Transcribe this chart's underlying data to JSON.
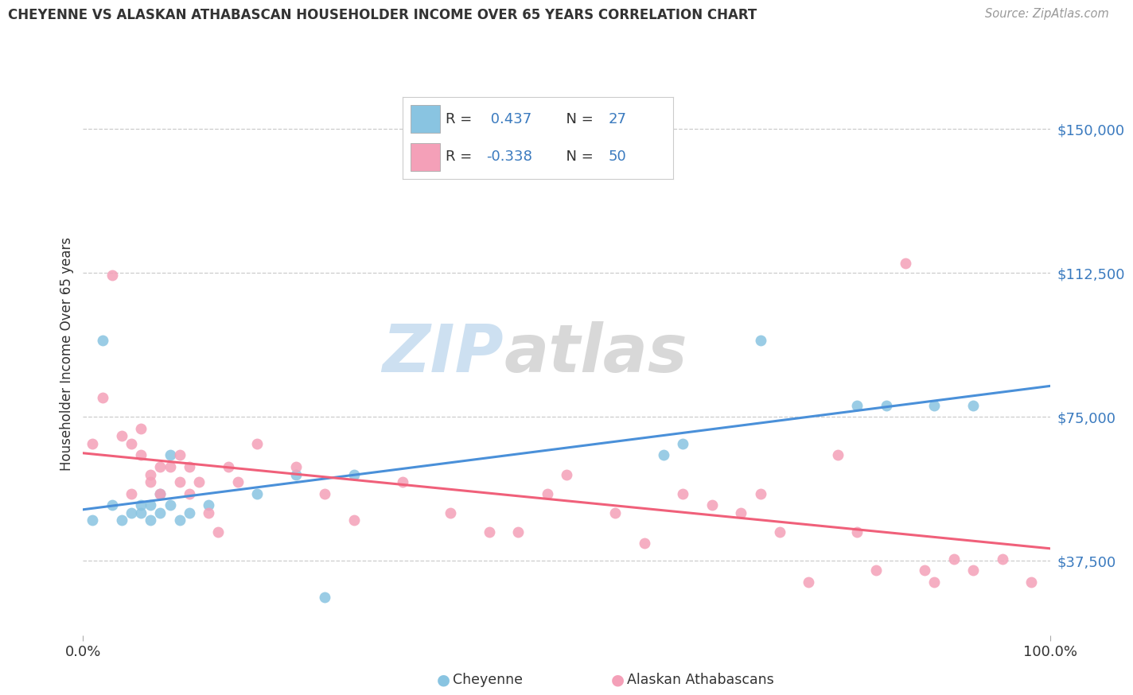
{
  "title": "CHEYENNE VS ALASKAN ATHABASCAN HOUSEHOLDER INCOME OVER 65 YEARS CORRELATION CHART",
  "source": "Source: ZipAtlas.com",
  "ylabel": "Householder Income Over 65 years",
  "legend_labels": [
    "Cheyenne",
    "Alaskan Athabascans"
  ],
  "cheyenne_R": "0.437",
  "cheyenne_N": "27",
  "athabascan_R": "-0.338",
  "athabascan_N": "50",
  "cheyenne_color": "#89c4e1",
  "athabascan_color": "#f4a0b8",
  "cheyenne_line_color": "#4a90d9",
  "athabascan_line_color": "#f0607a",
  "ytick_labels": [
    "$37,500",
    "$75,000",
    "$112,500",
    "$150,000"
  ],
  "ytick_values": [
    37500,
    75000,
    112500,
    150000
  ],
  "ymin": 18000,
  "ymax": 165000,
  "xmin": 0,
  "xmax": 100,
  "cheyenne_x": [
    1,
    2,
    3,
    4,
    5,
    6,
    6,
    7,
    7,
    8,
    8,
    9,
    9,
    10,
    11,
    13,
    18,
    22,
    25,
    28,
    60,
    62,
    70,
    80,
    83,
    88,
    92
  ],
  "cheyenne_y": [
    48000,
    95000,
    52000,
    48000,
    50000,
    52000,
    50000,
    48000,
    52000,
    55000,
    50000,
    52000,
    65000,
    48000,
    50000,
    52000,
    55000,
    60000,
    28000,
    60000,
    65000,
    68000,
    95000,
    78000,
    78000,
    78000,
    78000
  ],
  "athabascan_x": [
    1,
    2,
    3,
    4,
    5,
    5,
    6,
    6,
    7,
    7,
    8,
    8,
    9,
    10,
    10,
    11,
    11,
    12,
    13,
    14,
    15,
    16,
    18,
    22,
    25,
    28,
    33,
    38,
    42,
    45,
    48,
    50,
    55,
    58,
    62,
    65,
    68,
    70,
    72,
    75,
    78,
    80,
    82,
    85,
    87,
    88,
    90,
    92,
    95,
    98
  ],
  "athabascan_y": [
    68000,
    80000,
    112000,
    70000,
    68000,
    55000,
    65000,
    72000,
    60000,
    58000,
    62000,
    55000,
    62000,
    65000,
    58000,
    62000,
    55000,
    58000,
    50000,
    45000,
    62000,
    58000,
    68000,
    62000,
    55000,
    48000,
    58000,
    50000,
    45000,
    45000,
    55000,
    60000,
    50000,
    42000,
    55000,
    52000,
    50000,
    55000,
    45000,
    32000,
    65000,
    45000,
    35000,
    115000,
    35000,
    32000,
    38000,
    35000,
    38000,
    32000
  ]
}
